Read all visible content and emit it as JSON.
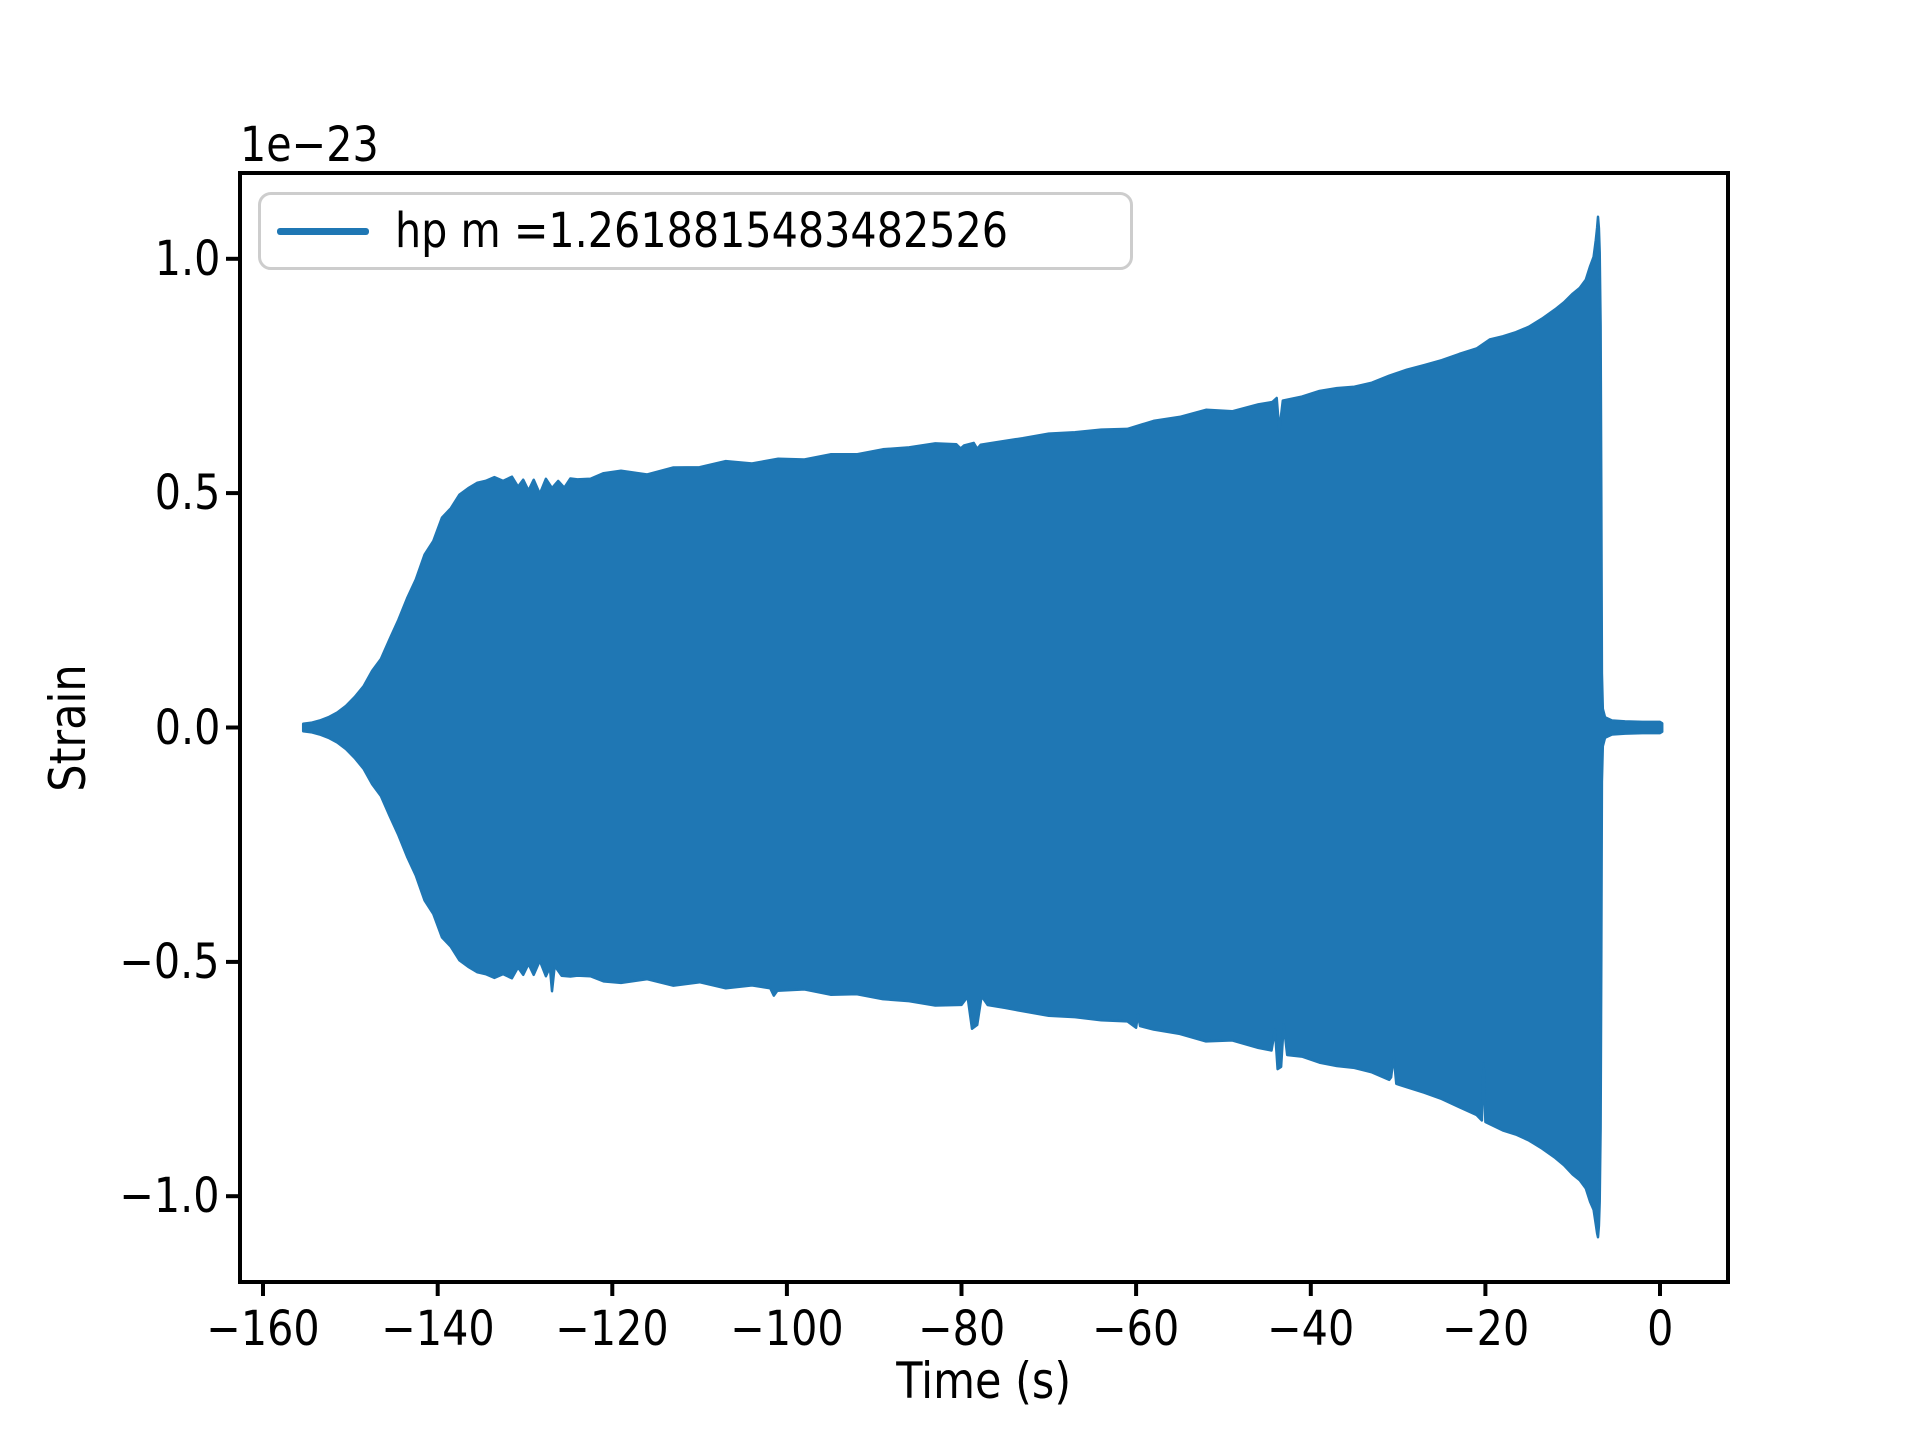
{
  "figure": {
    "offset_text": "1e−23",
    "xlabel": "Time (s)",
    "ylabel": "Strain",
    "legend_label": "hp m =1.2618815483482526",
    "colors": {
      "series": "#1f77b4",
      "legend_border": "#cdcdcd",
      "axes": "#000000",
      "background": "#ffffff"
    }
  },
  "chart_data": {
    "type": "area",
    "title": "",
    "xlabel": "Time (s)",
    "ylabel": "Strain",
    "y_offset_factor": "1e−23",
    "legend_label": "hp m =1.2618815483482526",
    "legend_position": "upper left",
    "grid": false,
    "series_color": "#1f77b4",
    "xlim": [
      -162.64,
      7.79
    ],
    "ylim": [
      -1.183,
      1.183
    ],
    "x_ticks": [
      -160,
      -140,
      -120,
      -100,
      -80,
      -60,
      -40,
      -20,
      0
    ],
    "x_tick_labels": [
      "−160",
      "−140",
      "−120",
      "−100",
      "−80",
      "−60",
      "−40",
      "−20",
      "0"
    ],
    "y_ticks": [
      1.0,
      0.5,
      0.0,
      -0.5,
      -1.0
    ],
    "y_tick_labels": [
      "1.0",
      "0.5",
      "0.0",
      "−0.5",
      "−1.0"
    ],
    "units": "strain × 1e−23, time in seconds; waveform is a dense oscillation shown by its filled envelope",
    "envelope_upper": [
      [
        -155.4,
        0.008
      ],
      [
        -154.5,
        0.01
      ],
      [
        -153.5,
        0.015
      ],
      [
        -152.5,
        0.022
      ],
      [
        -151.5,
        0.032
      ],
      [
        -150.5,
        0.046
      ],
      [
        -149.5,
        0.065
      ],
      [
        -148.5,
        0.088
      ],
      [
        -147.5,
        0.115
      ],
      [
        -146.5,
        0.148
      ],
      [
        -145.5,
        0.185
      ],
      [
        -144.5,
        0.228
      ],
      [
        -143.5,
        0.272
      ],
      [
        -142.5,
        0.318
      ],
      [
        -141.5,
        0.363
      ],
      [
        -140.5,
        0.405
      ],
      [
        -139.5,
        0.443
      ],
      [
        -138.5,
        0.474
      ],
      [
        -137.5,
        0.497
      ],
      [
        -136.5,
        0.513
      ],
      [
        -135.5,
        0.523
      ],
      [
        -134.5,
        0.528
      ],
      [
        -133.5,
        0.53
      ],
      [
        -132.5,
        0.53
      ],
      [
        -131.5,
        0.527
      ],
      [
        -130.8,
        0.508
      ],
      [
        -130.2,
        0.53
      ],
      [
        -129.6,
        0.506
      ],
      [
        -129.0,
        0.53
      ],
      [
        -128.3,
        0.505
      ],
      [
        -127.6,
        0.53
      ],
      [
        -126.9,
        0.508
      ],
      [
        -126.2,
        0.531
      ],
      [
        -125.5,
        0.512
      ],
      [
        -124.8,
        0.532
      ],
      [
        -124.0,
        0.533
      ],
      [
        -122.5,
        0.537
      ],
      [
        -121.0,
        0.541
      ],
      [
        -119.0,
        0.546
      ],
      [
        -116.0,
        0.549
      ],
      [
        -113.0,
        0.553
      ],
      [
        -110.0,
        0.557
      ],
      [
        -107.0,
        0.561
      ],
      [
        -104.0,
        0.566
      ],
      [
        -101.0,
        0.571
      ],
      [
        -98.0,
        0.576
      ],
      [
        -95.0,
        0.581
      ],
      [
        -92.0,
        0.587
      ],
      [
        -89.0,
        0.592
      ],
      [
        -86.0,
        0.597
      ],
      [
        -83.0,
        0.601
      ],
      [
        -80.6,
        0.604
      ],
      [
        -80.1,
        0.592
      ],
      [
        -79.7,
        0.604
      ],
      [
        -78.6,
        0.605
      ],
      [
        -78.2,
        0.593
      ],
      [
        -77.8,
        0.606
      ],
      [
        -76.0,
        0.609
      ],
      [
        -73.0,
        0.616
      ],
      [
        -70.0,
        0.623
      ],
      [
        -67.0,
        0.63
      ],
      [
        -64.0,
        0.637
      ],
      [
        -61.0,
        0.644
      ],
      [
        -58.0,
        0.652
      ],
      [
        -55.0,
        0.661
      ],
      [
        -52.0,
        0.67
      ],
      [
        -49.0,
        0.679
      ],
      [
        -46.0,
        0.69
      ],
      [
        -44.4,
        0.697
      ],
      [
        -43.9,
        0.698
      ],
      [
        -43.6,
        0.632
      ],
      [
        -43.2,
        0.7
      ],
      [
        -41.0,
        0.709
      ],
      [
        -39.0,
        0.717
      ],
      [
        -37.0,
        0.726
      ],
      [
        -35.0,
        0.735
      ],
      [
        -33.0,
        0.744
      ],
      [
        -31.0,
        0.754
      ],
      [
        -29.0,
        0.764
      ],
      [
        -27.0,
        0.776
      ],
      [
        -25.0,
        0.788
      ],
      [
        -23.0,
        0.799
      ],
      [
        -21.0,
        0.81
      ],
      [
        -19.5,
        0.82
      ],
      [
        -18.0,
        0.832
      ],
      [
        -16.5,
        0.845
      ],
      [
        -15.0,
        0.858
      ],
      [
        -13.5,
        0.873
      ],
      [
        -12.0,
        0.891
      ],
      [
        -11.0,
        0.905
      ],
      [
        -10.0,
        0.922
      ],
      [
        -9.2,
        0.94
      ],
      [
        -8.5,
        0.96
      ],
      [
        -8.0,
        0.98
      ],
      [
        -7.6,
        1.005
      ],
      [
        -7.35,
        1.035
      ],
      [
        -7.2,
        1.062
      ],
      [
        -7.1,
        1.087
      ],
      [
        -7.0,
        1.07
      ],
      [
        -6.9,
        1.02
      ],
      [
        -6.8,
        0.86
      ],
      [
        -6.72,
        0.5
      ],
      [
        -6.65,
        0.12
      ],
      [
        -6.55,
        0.04
      ],
      [
        -6.3,
        0.022
      ],
      [
        -5.5,
        0.015
      ],
      [
        -4.0,
        0.013
      ],
      [
        -2.0,
        0.012
      ],
      [
        0.0,
        0.012
      ],
      [
        0.25,
        0.009
      ]
    ],
    "envelope_lower": [
      [
        -155.4,
        -0.008
      ],
      [
        -154.5,
        -0.01
      ],
      [
        -153.5,
        -0.015
      ],
      [
        -152.5,
        -0.022
      ],
      [
        -151.5,
        -0.032
      ],
      [
        -150.5,
        -0.046
      ],
      [
        -149.5,
        -0.065
      ],
      [
        -148.5,
        -0.088
      ],
      [
        -147.5,
        -0.115
      ],
      [
        -146.5,
        -0.148
      ],
      [
        -145.5,
        -0.185
      ],
      [
        -144.5,
        -0.228
      ],
      [
        -143.5,
        -0.272
      ],
      [
        -142.5,
        -0.318
      ],
      [
        -141.5,
        -0.363
      ],
      [
        -140.5,
        -0.405
      ],
      [
        -139.5,
        -0.443
      ],
      [
        -138.5,
        -0.474
      ],
      [
        -137.5,
        -0.497
      ],
      [
        -136.5,
        -0.513
      ],
      [
        -135.5,
        -0.523
      ],
      [
        -134.5,
        -0.528
      ],
      [
        -133.5,
        -0.53
      ],
      [
        -132.5,
        -0.53
      ],
      [
        -131.5,
        -0.527
      ],
      [
        -130.8,
        -0.506
      ],
      [
        -130.2,
        -0.529
      ],
      [
        -129.6,
        -0.505
      ],
      [
        -129.0,
        -0.529
      ],
      [
        -128.3,
        -0.504
      ],
      [
        -127.6,
        -0.53
      ],
      [
        -127.15,
        -0.505
      ],
      [
        -126.9,
        -0.56
      ],
      [
        -126.6,
        -0.507
      ],
      [
        -125.8,
        -0.531
      ],
      [
        -124.8,
        -0.532
      ],
      [
        -124.0,
        -0.533
      ],
      [
        -122.5,
        -0.537
      ],
      [
        -121.0,
        -0.54
      ],
      [
        -119.0,
        -0.543
      ],
      [
        -116.0,
        -0.546
      ],
      [
        -113.0,
        -0.549
      ],
      [
        -110.0,
        -0.545
      ],
      [
        -107.0,
        -0.549
      ],
      [
        -104.0,
        -0.553
      ],
      [
        -101.9,
        -0.556
      ],
      [
        -101.5,
        -0.575
      ],
      [
        -101.1,
        -0.557
      ],
      [
        -98.0,
        -0.563
      ],
      [
        -95.0,
        -0.568
      ],
      [
        -92.0,
        -0.573
      ],
      [
        -89.0,
        -0.578
      ],
      [
        -86.0,
        -0.583
      ],
      [
        -83.0,
        -0.588
      ],
      [
        -80.0,
        -0.592
      ],
      [
        -79.3,
        -0.578
      ],
      [
        -78.8,
        -0.636
      ],
      [
        -78.2,
        -0.633
      ],
      [
        -77.7,
        -0.579
      ],
      [
        -77.0,
        -0.596
      ],
      [
        -75.0,
        -0.6
      ],
      [
        -73.0,
        -0.604
      ],
      [
        -70.0,
        -0.611
      ],
      [
        -67.0,
        -0.618
      ],
      [
        -64.0,
        -0.626
      ],
      [
        -61.0,
        -0.634
      ],
      [
        -60.0,
        -0.637
      ],
      [
        -59.8,
        -0.612
      ],
      [
        -59.55,
        -0.64
      ],
      [
        -58.0,
        -0.642
      ],
      [
        -55.0,
        -0.652
      ],
      [
        -52.0,
        -0.662
      ],
      [
        -49.0,
        -0.672
      ],
      [
        -46.0,
        -0.684
      ],
      [
        -44.5,
        -0.69
      ],
      [
        -44.1,
        -0.64
      ],
      [
        -43.8,
        -0.73
      ],
      [
        -43.4,
        -0.725
      ],
      [
        -43.1,
        -0.642
      ],
      [
        -42.7,
        -0.698
      ],
      [
        -41.0,
        -0.705
      ],
      [
        -39.0,
        -0.714
      ],
      [
        -37.0,
        -0.724
      ],
      [
        -35.0,
        -0.734
      ],
      [
        -33.0,
        -0.744
      ],
      [
        -31.0,
        -0.755
      ],
      [
        -30.8,
        -0.753
      ],
      [
        -30.5,
        -0.7
      ],
      [
        -30.2,
        -0.756
      ],
      [
        -29.0,
        -0.768
      ],
      [
        -27.0,
        -0.782
      ],
      [
        -25.0,
        -0.797
      ],
      [
        -23.0,
        -0.812
      ],
      [
        -21.0,
        -0.828
      ],
      [
        -20.4,
        -0.838
      ],
      [
        -20.2,
        -0.712
      ],
      [
        -20.0,
        -0.843
      ],
      [
        -18.0,
        -0.857
      ],
      [
        -16.5,
        -0.87
      ],
      [
        -15.0,
        -0.884
      ],
      [
        -13.5,
        -0.899
      ],
      [
        -12.0,
        -0.917
      ],
      [
        -11.0,
        -0.932
      ],
      [
        -10.0,
        -0.95
      ],
      [
        -9.2,
        -0.968
      ],
      [
        -8.5,
        -0.988
      ],
      [
        -8.0,
        -1.008
      ],
      [
        -7.6,
        -1.03
      ],
      [
        -7.35,
        -1.055
      ],
      [
        -7.2,
        -1.075
      ],
      [
        -7.1,
        -1.085
      ],
      [
        -7.0,
        -1.068
      ],
      [
        -6.9,
        -1.018
      ],
      [
        -6.8,
        -0.858
      ],
      [
        -6.72,
        -0.5
      ],
      [
        -6.65,
        -0.12
      ],
      [
        -6.55,
        -0.04
      ],
      [
        -6.3,
        -0.022
      ],
      [
        -5.5,
        -0.015
      ],
      [
        -4.0,
        -0.013
      ],
      [
        -2.0,
        -0.012
      ],
      [
        0.0,
        -0.012
      ],
      [
        0.25,
        -0.009
      ]
    ]
  }
}
